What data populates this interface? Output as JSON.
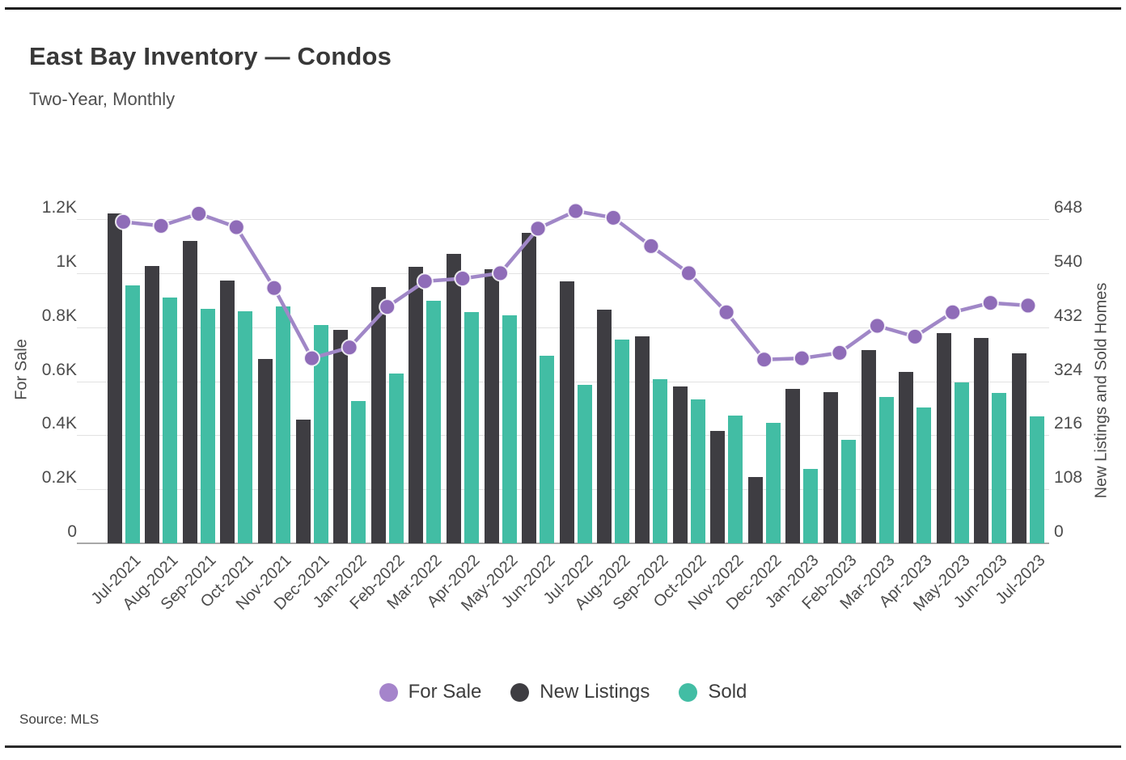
{
  "header": {
    "title": "East Bay Inventory — Condos",
    "subtitle": "Two-Year, Monthly"
  },
  "footer": {
    "source": "Source: MLS"
  },
  "legend": {
    "items": [
      "For Sale",
      "New Listings",
      "Sold"
    ]
  },
  "colors": {
    "for_sale_line": "#a087c7",
    "for_sale_point": "#8f6cb8",
    "for_sale_legend": "#a584cb",
    "new_listings": "#3e3d42",
    "sold": "#42bda4",
    "gridline": "#e2e2e2",
    "axis_line": "#a8a8a8",
    "rule": "#1e1e1e"
  },
  "chart_data": {
    "type": "combo-bar-line",
    "title": "East Bay Inventory — Condos",
    "subtitle": "Two-Year, Monthly",
    "grid": true,
    "legend_position": "bottom",
    "categories": [
      "Jul-2021",
      "Aug-2021",
      "Sep-2021",
      "Oct-2021",
      "Nov-2021",
      "Dec-2021",
      "Jan-2022",
      "Feb-2022",
      "Mar-2022",
      "Apr-2022",
      "May-2022",
      "Jun-2022",
      "Jul-2022",
      "Aug-2022",
      "Sep-2022",
      "Oct-2022",
      "Nov-2022",
      "Dec-2022",
      "Jan-2023",
      "Feb-2023",
      "Mar-2023",
      "Apr-2023",
      "May-2023",
      "Jun-2023",
      "Jul-2023"
    ],
    "left_axis": {
      "title": "For Sale",
      "min": 0,
      "max": 1200,
      "ticks": [
        {
          "label": "1.2K",
          "value": 1200
        },
        {
          "label": "1K",
          "value": 1000
        },
        {
          "label": "0.8K",
          "value": 800
        },
        {
          "label": "0.6K",
          "value": 600
        },
        {
          "label": "0.4K",
          "value": 400
        },
        {
          "label": "0.2K",
          "value": 200
        },
        {
          "label": "0",
          "value": 0
        }
      ]
    },
    "right_axis": {
      "title": "New Listings and Sold Homes",
      "min": 0,
      "max": 648,
      "ticks": [
        {
          "label": "648",
          "value": 648
        },
        {
          "label": "540",
          "value": 540
        },
        {
          "label": "432",
          "value": 432
        },
        {
          "label": "324",
          "value": 324
        },
        {
          "label": "216",
          "value": 216
        },
        {
          "label": "108",
          "value": 108
        },
        {
          "label": "0",
          "value": 0
        }
      ]
    },
    "series": [
      {
        "name": "For Sale",
        "type": "line",
        "axis": "left",
        "color": "#a087c7",
        "point_color": "#8f6cb8",
        "values": [
          1190,
          1175,
          1220,
          1170,
          945,
          685,
          725,
          875,
          970,
          980,
          1000,
          1165,
          1230,
          1205,
          1100,
          1000,
          855,
          680,
          685,
          705,
          805,
          765,
          855,
          890,
          880
        ]
      },
      {
        "name": "New Listings",
        "type": "bar",
        "axis": "right",
        "color": "#3e3d42",
        "values": [
          660,
          555,
          605,
          525,
          368,
          248,
          426,
          512,
          552,
          579,
          548,
          620,
          524,
          467,
          413,
          313,
          225,
          133,
          308,
          302,
          386,
          342,
          420,
          410,
          379
        ]
      },
      {
        "name": "Sold",
        "type": "bar",
        "axis": "right",
        "color": "#42bda4",
        "values": [
          516,
          492,
          468,
          464,
          473,
          436,
          285,
          340,
          485,
          462,
          455,
          375,
          317,
          408,
          328,
          288,
          255,
          241,
          148,
          207,
          292,
          272,
          321,
          300,
          253
        ]
      }
    ]
  }
}
